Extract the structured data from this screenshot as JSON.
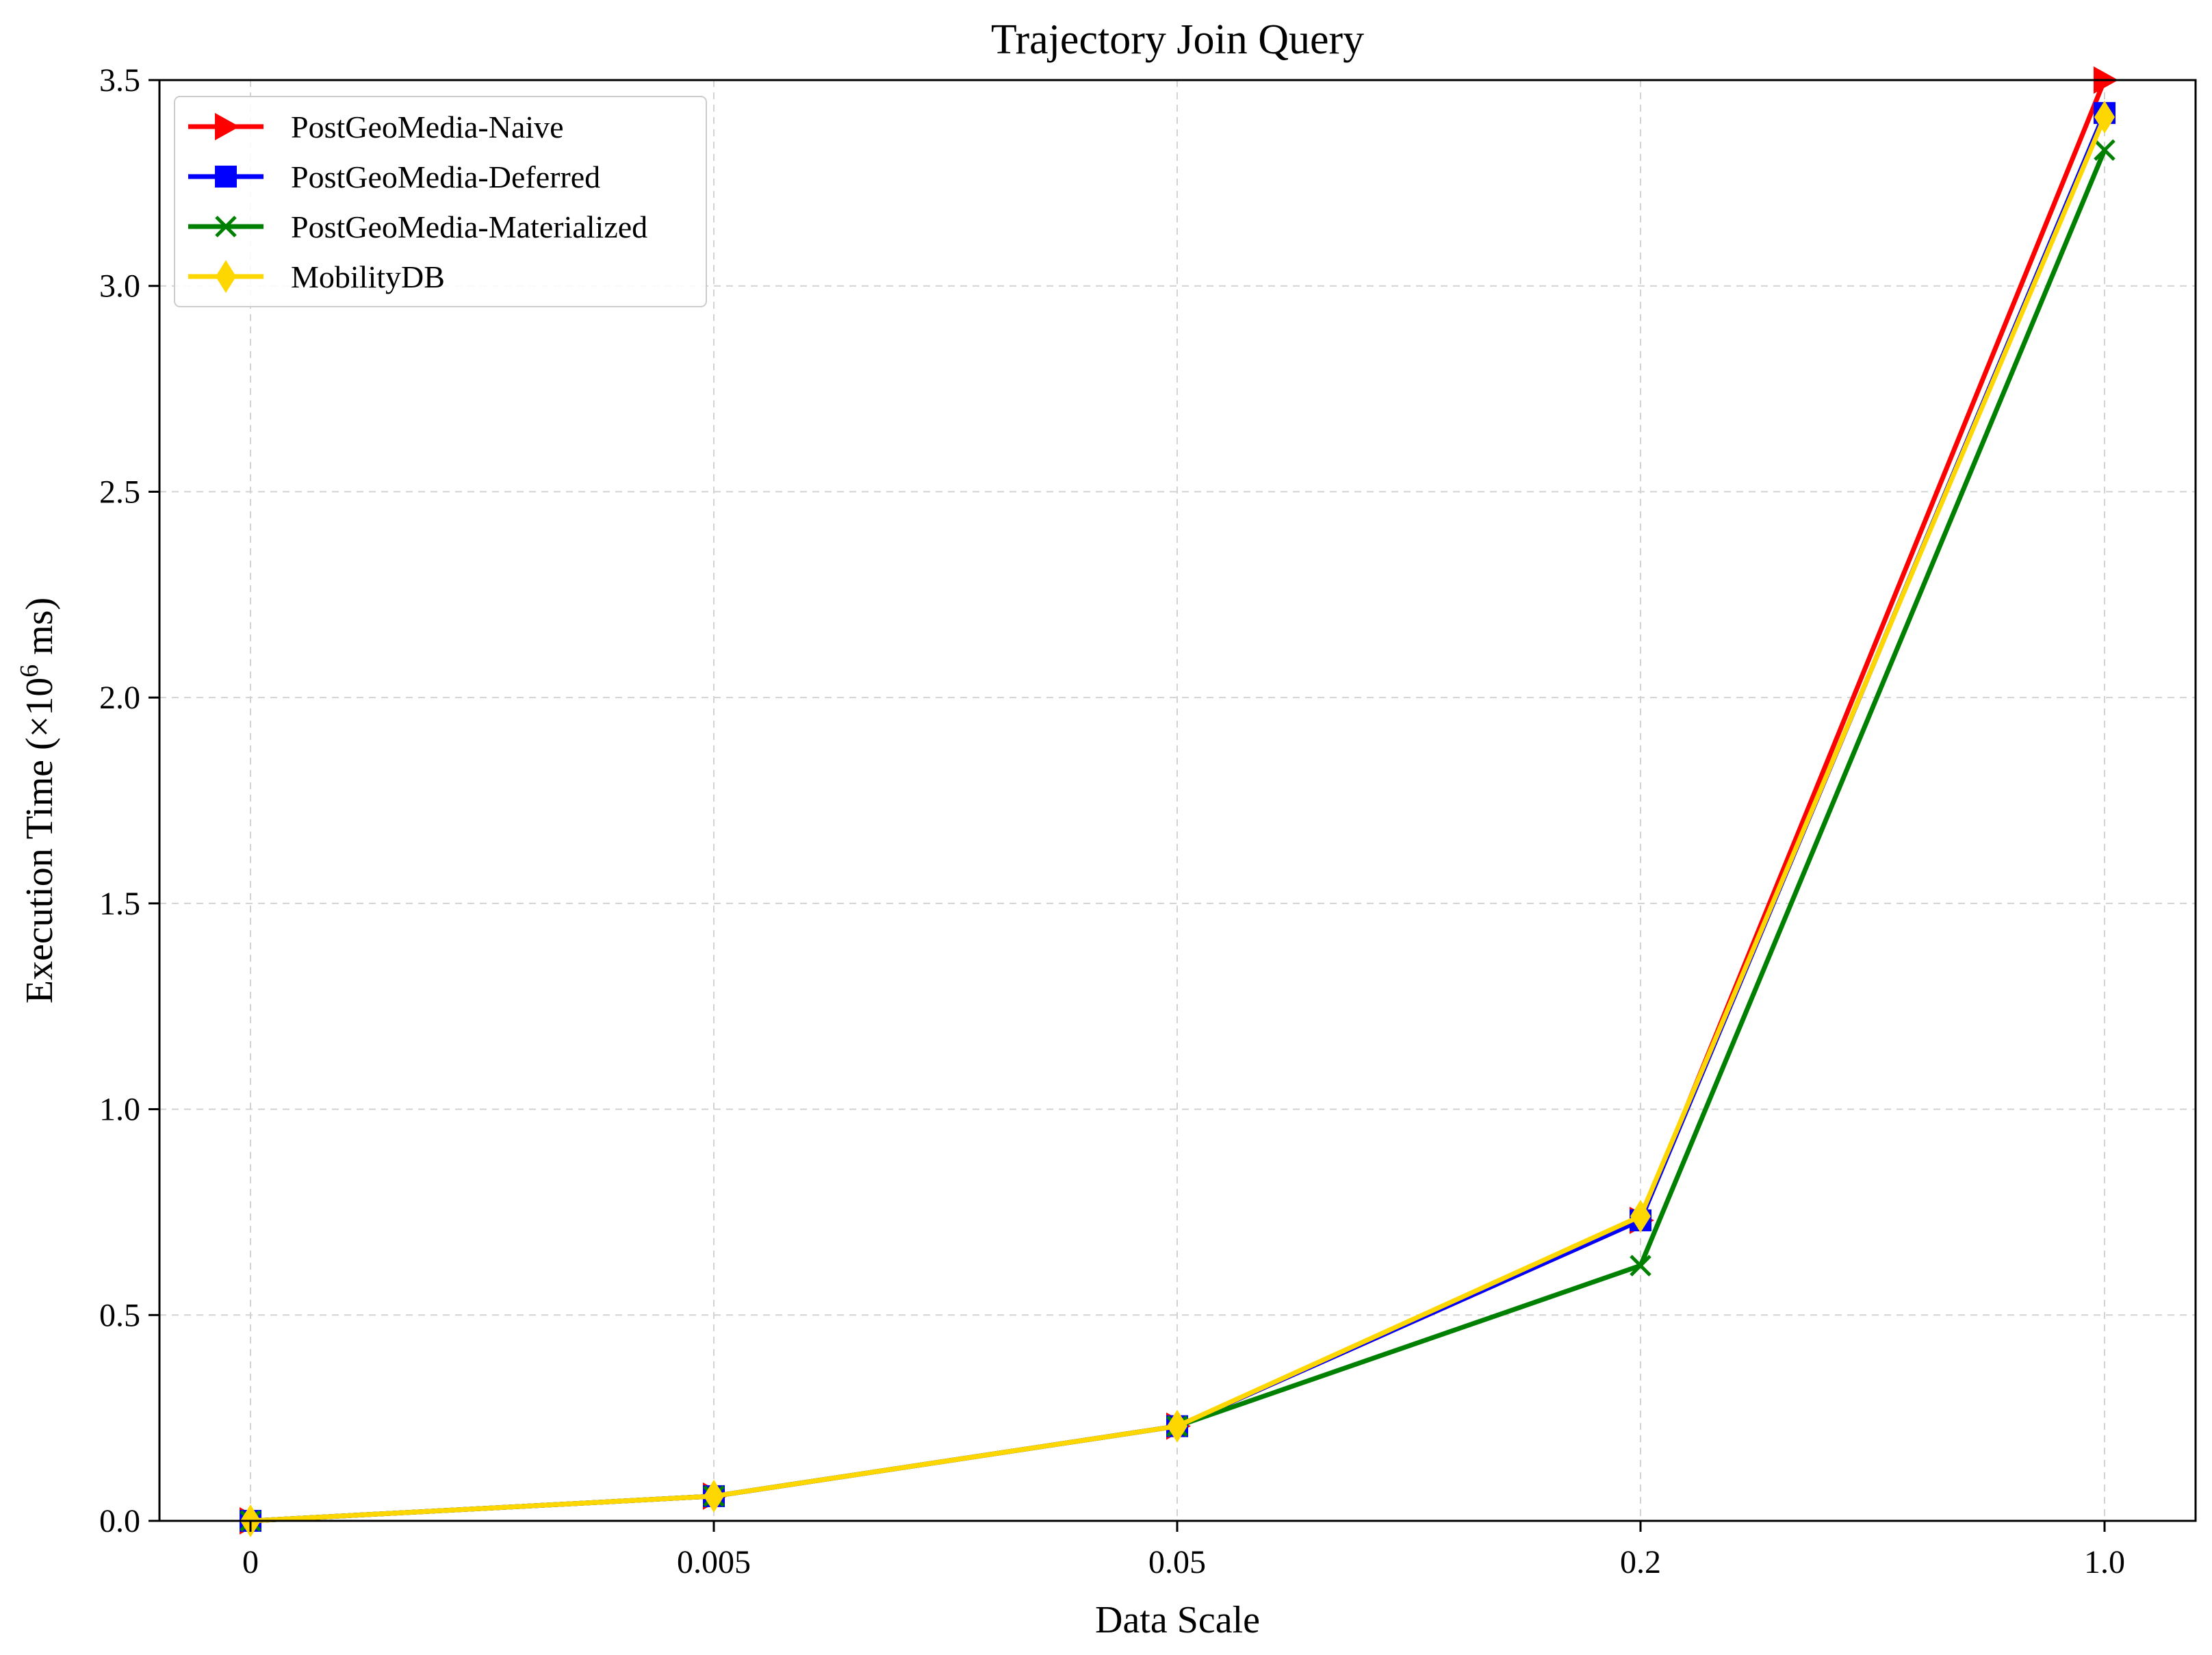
{
  "colors": {
    "naive": "#ff0000",
    "deferred": "#0000ff",
    "materialized": "#008000",
    "mobilitydb": "#ffd700",
    "grid": "#d3d3d3",
    "axis": "#000000",
    "legend_border": "#cccccc"
  },
  "chart_data": {
    "type": "line",
    "title": "Trajectory Join Query",
    "xlabel": "Data Scale",
    "ylabel_main": "Execution Time (×10",
    "ylabel_exp": "6",
    "ylabel_tail": " ms)",
    "categories": [
      "0",
      "0.005",
      "0.05",
      "0.2",
      "1.0"
    ],
    "ylim": [
      0,
      3.5
    ],
    "yticks": [
      0.0,
      0.5,
      1.0,
      1.5,
      2.0,
      2.5,
      3.0,
      3.5
    ],
    "ytick_labels": [
      "0.0",
      "0.5",
      "1.0",
      "1.5",
      "2.0",
      "2.5",
      "3.0",
      "3.5"
    ],
    "grid": true,
    "legend_position": "top-left",
    "series": [
      {
        "name": "PostGeoMedia-Naive",
        "color_key": "naive",
        "marker": "triangle-right",
        "values": [
          0.0,
          0.06,
          0.23,
          0.73,
          3.5
        ]
      },
      {
        "name": "PostGeoMedia-Deferred",
        "color_key": "deferred",
        "marker": "square",
        "values": [
          0.0,
          0.06,
          0.23,
          0.73,
          3.42
        ]
      },
      {
        "name": "PostGeoMedia-Materialized",
        "color_key": "materialized",
        "marker": "x",
        "values": [
          0.0,
          0.06,
          0.23,
          0.62,
          3.33
        ]
      },
      {
        "name": "MobilityDB",
        "color_key": "mobilitydb",
        "marker": "diamond",
        "values": [
          0.0,
          0.06,
          0.23,
          0.74,
          3.41
        ]
      }
    ]
  }
}
